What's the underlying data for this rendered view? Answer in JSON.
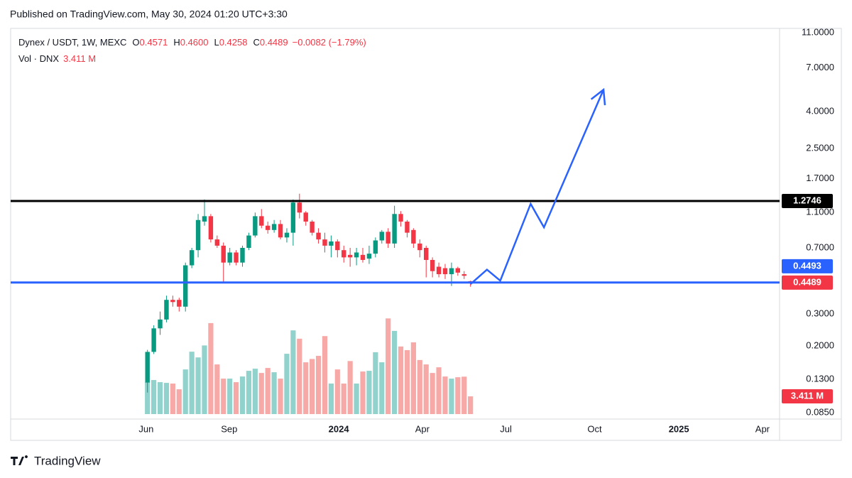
{
  "page": {
    "published": "Published on TradingView.com, May 30, 2024 01:20 UTC+3:30",
    "brand": "TradingView"
  },
  "chart_data": {
    "type": "candlestick",
    "symbol": "Dynex / USDT, 1W, MEXC",
    "legend_ohlc": [
      {
        "label": "O",
        "value": "0.4571"
      },
      {
        "label": "H",
        "value": "0.4600"
      },
      {
        "label": "L",
        "value": "0.4258"
      },
      {
        "label": "C",
        "value": "0.4489"
      }
    ],
    "legend_change": "−0.0082 (−1.79%)",
    "volume_label": "Vol · DNX",
    "volume_legend": "3.411 M",
    "up_color": "#089981",
    "down_color": "#f23645",
    "volume_up_color": "#92d2cc",
    "volume_down_color": "#f7a9a7",
    "log_scale": true,
    "grid": true,
    "ylim": [
      0.082,
      11.6
    ],
    "yticks": [
      {
        "value": 11,
        "label": "11.0000"
      },
      {
        "value": 7,
        "label": "7.0000"
      },
      {
        "value": 4,
        "label": "4.0000"
      },
      {
        "value": 2.5,
        "label": "2.5000"
      },
      {
        "value": 1.7,
        "label": "1.7000"
      },
      {
        "value": 1.1,
        "label": "1.1000"
      },
      {
        "value": 0.7,
        "label": "0.7000"
      },
      {
        "value": 0.3,
        "label": "0.3000"
      },
      {
        "value": 0.2,
        "label": "0.2000"
      },
      {
        "value": 0.13,
        "label": "0.1300"
      },
      {
        "value": 0.085,
        "label": "0.0850"
      }
    ],
    "xlim": [
      -21.6,
      99.8
    ],
    "xticks": [
      {
        "value": -0.2,
        "label": "Jun"
      },
      {
        "value": 12.9,
        "label": "Sep"
      },
      {
        "value": 30.2,
        "label": "2024",
        "bold": true
      },
      {
        "value": 43.4,
        "label": "Apr"
      },
      {
        "value": 56.6,
        "label": "Jul"
      },
      {
        "value": 70.6,
        "label": "Oct"
      },
      {
        "value": 83.9,
        "label": "2025",
        "bold": true
      },
      {
        "value": 97.1,
        "label": "Apr"
      }
    ],
    "open": [
      0.125,
      0.185,
      0.25,
      0.28,
      0.36,
      0.36,
      0.33,
      0.56,
      0.68,
      0.98,
      1.05,
      0.78,
      0.72,
      0.58,
      0.66,
      0.58,
      0.7,
      0.82,
      1.05,
      0.93,
      0.88,
      0.95,
      0.8,
      0.85,
      1.25,
      1.1,
      0.98,
      0.85,
      0.78,
      0.72,
      0.76,
      0.68,
      0.64,
      0.62,
      0.64,
      0.61,
      0.65,
      0.77,
      0.86,
      0.74,
      1.08,
      0.98,
      0.88,
      0.74,
      0.7,
      0.6,
      0.55,
      0.54,
      0.5,
      0.54,
      0.5,
      0.4571
    ],
    "high": [
      0.19,
      0.26,
      0.31,
      0.38,
      0.38,
      0.37,
      0.58,
      0.7,
      1.08,
      1.3,
      1.08,
      0.82,
      0.75,
      0.7,
      0.68,
      0.72,
      0.85,
      1.1,
      1.15,
      0.98,
      1.0,
      1.0,
      0.9,
      1.3,
      1.4,
      1.12,
      1.0,
      0.9,
      0.85,
      0.82,
      0.78,
      0.72,
      0.7,
      0.7,
      0.7,
      0.72,
      0.8,
      0.88,
      0.9,
      1.2,
      1.12,
      1.0,
      0.9,
      0.78,
      0.72,
      0.62,
      0.58,
      0.57,
      0.58,
      0.55,
      0.52,
      0.46
    ],
    "low": [
      0.11,
      0.18,
      0.23,
      0.27,
      0.33,
      0.31,
      0.31,
      0.54,
      0.62,
      0.93,
      0.75,
      0.7,
      0.45,
      0.56,
      0.56,
      0.55,
      0.68,
      0.8,
      0.9,
      0.84,
      0.85,
      0.78,
      0.75,
      0.72,
      1.02,
      0.93,
      0.82,
      0.74,
      0.66,
      0.62,
      0.62,
      0.58,
      0.55,
      0.56,
      0.58,
      0.57,
      0.62,
      0.74,
      0.7,
      0.7,
      0.92,
      0.8,
      0.7,
      0.62,
      0.48,
      0.48,
      0.48,
      0.47,
      0.43,
      0.49,
      0.47,
      0.4258
    ],
    "close": [
      0.185,
      0.25,
      0.28,
      0.36,
      0.35,
      0.33,
      0.56,
      0.68,
      1.0,
      1.05,
      0.78,
      0.72,
      0.58,
      0.66,
      0.58,
      0.7,
      0.82,
      1.05,
      0.93,
      0.88,
      0.95,
      0.8,
      0.85,
      1.25,
      1.1,
      0.98,
      0.85,
      0.78,
      0.72,
      0.76,
      0.68,
      0.62,
      0.62,
      0.66,
      0.6,
      0.65,
      0.77,
      0.86,
      0.74,
      1.08,
      0.98,
      0.85,
      0.74,
      0.68,
      0.6,
      0.52,
      0.5,
      0.5,
      0.54,
      0.51,
      0.49,
      0.4489
    ],
    "volume": [
      6.14,
      6.55,
      6.14,
      6.0,
      5.87,
      4.77,
      8.59,
      12.0,
      10.9,
      13.2,
      17.5,
      9.55,
      6.82,
      6.82,
      6.14,
      7.23,
      8.32,
      8.73,
      7.91,
      8.87,
      8.05,
      6.82,
      11.6,
      16.1,
      14.5,
      9.96,
      10.6,
      11.2,
      15.0,
      5.87,
      8.59,
      5.87,
      10.2,
      5.87,
      8.19,
      8.32,
      11.9,
      9.96,
      18.4,
      16.0,
      13.0,
      12.3,
      13.8,
      10.4,
      9.55,
      7.91,
      9.0,
      7.23,
      6.82,
      7.09,
      7.2,
      3.411
    ],
    "vlim": [
      0,
      25
    ],
    "hlines": [
      {
        "value": 1.2746,
        "color": "#000000"
      },
      {
        "value": 0.4493,
        "color": "#2962ff"
      }
    ],
    "projection": {
      "color": "#2962ff",
      "x": [
        51,
        53.6,
        55.7,
        60.5,
        62.6,
        72.0
      ],
      "values": [
        0.44,
        0.53,
        0.46,
        1.23,
        0.91,
        5.3
      ]
    }
  }
}
